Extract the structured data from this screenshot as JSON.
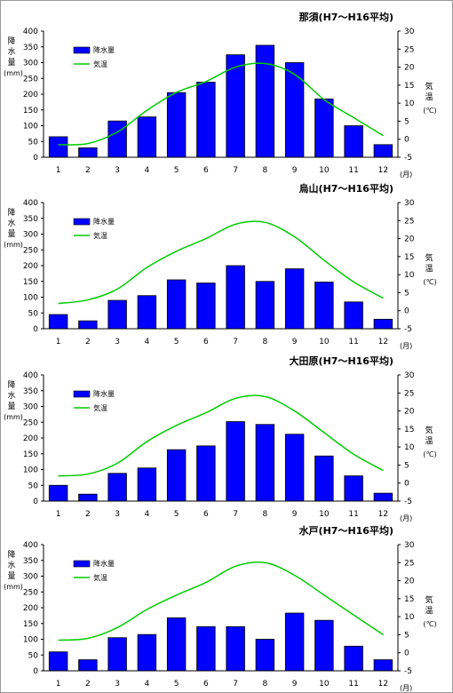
{
  "chart_data": [
    {
      "type": "bar",
      "title": "那須(H7～H16平均)",
      "categories": [
        "1",
        "2",
        "3",
        "4",
        "5",
        "6",
        "7",
        "8",
        "9",
        "10",
        "11",
        "12"
      ],
      "x_unit": "(月)",
      "ylabel_left": [
        "降",
        "水",
        "量"
      ],
      "ylabel_left_unit": "(mm)",
      "ylabel_right": [
        "気",
        "温"
      ],
      "ylabel_right_unit": "(℃)",
      "ylim_left": [
        0,
        400
      ],
      "ylim_right": [
        -5,
        30
      ],
      "yticks_left": [
        0,
        50,
        100,
        150,
        200,
        250,
        300,
        350,
        400
      ],
      "yticks_right": [
        -5,
        0,
        5,
        10,
        15,
        20,
        25,
        30
      ],
      "series": [
        {
          "name": "降水量",
          "kind": "bar",
          "axis": "left",
          "color": "#0000ff",
          "values": [
            65,
            30,
            115,
            128,
            205,
            238,
            325,
            355,
            300,
            185,
            100,
            40
          ]
        },
        {
          "name": "気温",
          "kind": "line",
          "axis": "right",
          "color": "#00cc00",
          "values": [
            -1.5,
            -1.2,
            2,
            8,
            13,
            16,
            20,
            21,
            18,
            11,
            6,
            1
          ]
        }
      ]
    },
    {
      "type": "bar",
      "title": "烏山(H7～H16平均)",
      "categories": [
        "1",
        "2",
        "3",
        "4",
        "5",
        "6",
        "7",
        "8",
        "9",
        "10",
        "11",
        "12"
      ],
      "x_unit": "(月)",
      "ylabel_left": [
        "降",
        "水",
        "量"
      ],
      "ylabel_left_unit": "(mm)",
      "ylabel_right": [
        "気",
        "温"
      ],
      "ylabel_right_unit": "(℃)",
      "ylim_left": [
        0,
        400
      ],
      "ylim_right": [
        -5,
        30
      ],
      "yticks_left": [
        0,
        50,
        100,
        150,
        200,
        250,
        300,
        350,
        400
      ],
      "yticks_right": [
        -5,
        0,
        5,
        10,
        15,
        20,
        25,
        30
      ],
      "series": [
        {
          "name": "降水量",
          "kind": "bar",
          "axis": "left",
          "color": "#0000ff",
          "values": [
            45,
            25,
            90,
            105,
            155,
            145,
            200,
            150,
            190,
            148,
            85,
            30
          ]
        },
        {
          "name": "気温",
          "kind": "line",
          "axis": "right",
          "color": "#00cc00",
          "values": [
            2,
            3,
            6,
            12,
            16.5,
            20,
            24,
            24.5,
            20.5,
            14,
            8,
            3.5
          ]
        }
      ]
    },
    {
      "type": "bar",
      "title": "大田原(H7～H16平均)",
      "categories": [
        "1",
        "2",
        "3",
        "4",
        "5",
        "6",
        "7",
        "8",
        "9",
        "10",
        "11",
        "12"
      ],
      "x_unit": "(月)",
      "ylabel_left": [
        "降",
        "水",
        "量"
      ],
      "ylabel_left_unit": "(mm)",
      "ylabel_right": [
        "気",
        "温"
      ],
      "ylabel_right_unit": "(℃)",
      "ylim_left": [
        0,
        400
      ],
      "ylim_right": [
        -5,
        30
      ],
      "yticks_left": [
        0,
        50,
        100,
        150,
        200,
        250,
        300,
        350,
        400
      ],
      "yticks_right": [
        -5,
        0,
        5,
        10,
        15,
        20,
        25,
        30
      ],
      "series": [
        {
          "name": "降水量",
          "kind": "bar",
          "axis": "left",
          "color": "#0000ff",
          "values": [
            50,
            22,
            88,
            105,
            163,
            175,
            252,
            243,
            212,
            143,
            80,
            25
          ]
        },
        {
          "name": "気温",
          "kind": "line",
          "axis": "right",
          "color": "#00cc00",
          "values": [
            2,
            2.5,
            5.5,
            11.5,
            16,
            19.5,
            23.5,
            24,
            20,
            14,
            8,
            3.5
          ]
        }
      ]
    },
    {
      "type": "bar",
      "title": "水戸(H7～H16平均)",
      "categories": [
        "1",
        "2",
        "3",
        "4",
        "5",
        "6",
        "7",
        "8",
        "9",
        "10",
        "11",
        "12"
      ],
      "x_unit": "(月)",
      "ylabel_left": [
        "降",
        "水",
        "量"
      ],
      "ylabel_left_unit": "(mm)",
      "ylabel_right": [
        "気",
        "温"
      ],
      "ylabel_right_unit": "(℃)",
      "ylim_left": [
        0,
        400
      ],
      "ylim_right": [
        -5,
        30
      ],
      "yticks_left": [
        0,
        50,
        100,
        150,
        200,
        250,
        300,
        350,
        400
      ],
      "yticks_right": [
        -5,
        0,
        5,
        10,
        15,
        20,
        25,
        30
      ],
      "series": [
        {
          "name": "降水量",
          "kind": "bar",
          "axis": "left",
          "color": "#0000ff",
          "values": [
            60,
            35,
            105,
            115,
            168,
            140,
            140,
            100,
            183,
            160,
            78,
            35
          ]
        },
        {
          "name": "気温",
          "kind": "line",
          "axis": "right",
          "color": "#00cc00",
          "values": [
            3.5,
            4,
            7,
            12,
            16,
            19.5,
            24,
            25,
            21.5,
            16,
            10.5,
            5
          ]
        }
      ]
    }
  ]
}
